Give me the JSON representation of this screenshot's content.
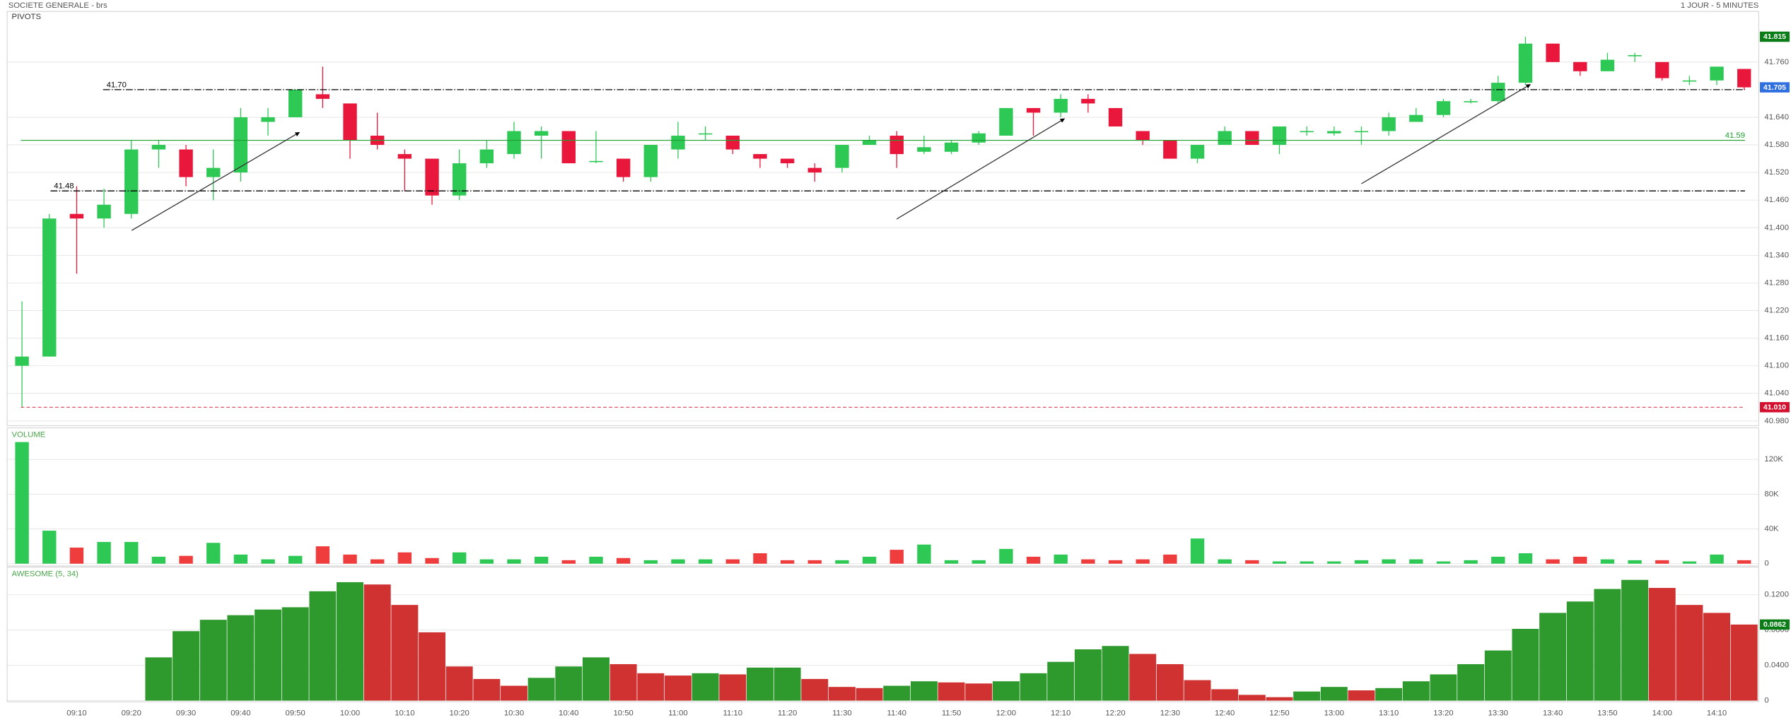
{
  "header": {
    "title": "SOCIETE GENERALE - brs",
    "period": "1 JOUR - 5 MINUTES"
  },
  "chart_data": [
    {
      "type": "candlestick",
      "title": "PIVOTS",
      "categories": [
        null,
        null,
        "09:10",
        null,
        "09:20",
        null,
        "09:30",
        null,
        "09:40",
        null,
        "09:50",
        null,
        "10:00",
        null,
        "10:10",
        null,
        "10:20",
        null,
        "10:30",
        null,
        "10:40",
        null,
        "10:50",
        null,
        "11:00",
        null,
        "11:10",
        null,
        "11:20",
        null,
        "11:30",
        null,
        "11:40",
        null,
        "11:50",
        null,
        "12:00",
        null,
        "12:10",
        null,
        "12:20",
        null,
        "12:30",
        null,
        "12:40",
        null,
        "12:50",
        null,
        "13:00",
        null,
        "13:10",
        null,
        "13:20",
        null,
        "13:30",
        null,
        "13:40",
        null,
        "13:50",
        null,
        "14:00",
        null,
        "14:10",
        null
      ],
      "open": [
        41.1,
        41.12,
        41.43,
        41.42,
        41.43,
        41.57,
        41.57,
        41.51,
        41.52,
        41.63,
        41.64,
        41.69,
        41.67,
        41.6,
        41.56,
        41.55,
        41.47,
        41.54,
        41.56,
        41.6,
        41.61,
        41.545,
        41.55,
        41.51,
        41.57,
        41.605,
        41.6,
        41.56,
        41.55,
        41.53,
        41.53,
        41.58,
        41.6,
        41.565,
        41.565,
        41.585,
        41.6,
        41.66,
        41.65,
        41.68,
        41.66,
        41.61,
        41.59,
        41.55,
        41.58,
        41.61,
        41.58,
        41.61,
        41.605,
        41.61,
        41.61,
        41.63,
        41.645,
        41.675,
        41.675,
        41.715,
        41.8,
        41.76,
        41.74,
        41.775,
        41.76,
        41.72,
        41.72,
        41.745
      ],
      "high": [
        41.24,
        41.43,
        41.49,
        41.485,
        41.59,
        41.59,
        41.58,
        41.57,
        41.66,
        41.66,
        41.7,
        41.75,
        41.67,
        41.65,
        41.57,
        41.55,
        41.57,
        41.59,
        41.63,
        41.62,
        41.61,
        41.61,
        41.55,
        41.58,
        41.63,
        41.62,
        41.6,
        41.56,
        41.55,
        41.54,
        41.58,
        41.6,
        41.61,
        41.6,
        41.59,
        41.61,
        41.66,
        41.66,
        41.69,
        41.69,
        41.66,
        41.61,
        41.59,
        41.58,
        41.62,
        41.61,
        41.62,
        41.62,
        41.62,
        41.62,
        41.65,
        41.66,
        41.68,
        41.68,
        41.73,
        41.815,
        41.8,
        41.76,
        41.78,
        41.78,
        41.76,
        41.73,
        41.75,
        41.745
      ],
      "low": [
        41.01,
        41.12,
        41.3,
        41.4,
        41.42,
        41.53,
        41.49,
        41.46,
        41.5,
        41.6,
        41.64,
        41.66,
        41.55,
        41.57,
        41.48,
        41.45,
        41.46,
        41.53,
        41.55,
        41.55,
        41.54,
        41.54,
        41.5,
        41.5,
        41.55,
        41.59,
        41.56,
        41.53,
        41.53,
        41.5,
        41.52,
        41.58,
        41.53,
        41.56,
        41.56,
        41.58,
        41.6,
        41.6,
        41.64,
        41.65,
        41.62,
        41.58,
        41.55,
        41.54,
        41.58,
        41.58,
        41.56,
        41.6,
        41.6,
        41.58,
        41.6,
        41.63,
        41.64,
        41.67,
        41.67,
        41.71,
        41.76,
        41.73,
        41.74,
        41.76,
        41.72,
        41.71,
        41.71,
        41.7
      ],
      "close": [
        41.12,
        41.42,
        41.42,
        41.45,
        41.57,
        41.58,
        41.51,
        41.53,
        41.64,
        41.64,
        41.7,
        41.68,
        41.59,
        41.58,
        41.55,
        41.47,
        41.54,
        41.57,
        41.61,
        41.61,
        41.54,
        41.545,
        41.51,
        41.58,
        41.6,
        41.605,
        41.57,
        41.55,
        41.54,
        41.52,
        41.58,
        41.59,
        41.56,
        41.575,
        41.585,
        41.605,
        41.66,
        41.65,
        41.68,
        41.67,
        41.62,
        41.59,
        41.55,
        41.58,
        41.61,
        41.58,
        41.62,
        41.61,
        41.61,
        41.61,
        41.64,
        41.645,
        41.675,
        41.675,
        41.715,
        41.8,
        41.76,
        41.74,
        41.765,
        41.775,
        41.725,
        41.72,
        41.75,
        41.705
      ],
      "up_color": "#2ec955",
      "down_color": "#e8173b",
      "ylim": [
        40.97,
        41.87
      ],
      "yticks": [
        {
          "value": 40.98,
          "label": "40.980"
        },
        {
          "value": 41.04,
          "label": "41.040"
        },
        {
          "value": 41.1,
          "label": "41.100"
        },
        {
          "value": 41.16,
          "label": "41.160"
        },
        {
          "value": 41.22,
          "label": "41.220"
        },
        {
          "value": 41.28,
          "label": "41.280"
        },
        {
          "value": 41.34,
          "label": "41.340"
        },
        {
          "value": 41.4,
          "label": "41.400"
        },
        {
          "value": 41.46,
          "label": "41.460"
        },
        {
          "value": 41.52,
          "label": "41.520"
        },
        {
          "value": 41.58,
          "label": "41.580"
        },
        {
          "value": 41.64,
          "label": "41.640"
        },
        {
          "value": 41.76,
          "label": "41.760"
        }
      ],
      "grid": true,
      "pivots": [
        {
          "value": 41.7,
          "label": "41.70",
          "color": "#000000"
        },
        {
          "value": 41.48,
          "label": "41.48",
          "color": "#000000"
        },
        {
          "value": 41.59,
          "label": "41.59",
          "color": "#1e9e2e"
        }
      ],
      "markers": [
        {
          "value": 41.815,
          "label": "41.815",
          "color": "#0a7d16"
        },
        {
          "value": 41.705,
          "label": "41.705",
          "color": "#2f6fe0"
        },
        {
          "value": 41.01,
          "label": "41.010",
          "color": "#d4102e",
          "line": "dashed"
        }
      ]
    },
    {
      "type": "bar",
      "title": "VOLUME",
      "values": [
        140000,
        38000,
        18500,
        25000,
        25000,
        8000,
        9000,
        24000,
        10500,
        5000,
        9000,
        20000,
        10500,
        5000,
        13000,
        6500,
        13000,
        5000,
        5000,
        8000,
        4000,
        8000,
        6500,
        4000,
        5000,
        5000,
        5000,
        12000,
        4000,
        4000,
        4000,
        8000,
        16000,
        22000,
        4000,
        4000,
        17000,
        8000,
        10500,
        5000,
        4000,
        5000,
        10500,
        29000,
        5000,
        4000,
        2600,
        2600,
        2600,
        4000,
        5000,
        5000,
        2600,
        4000,
        8000,
        12000,
        5000,
        8000,
        5000,
        4000,
        4000,
        2600,
        10500,
        4000
      ],
      "color_by": "candle",
      "up_color": "#2ec955",
      "down_color": "#ef3d3d",
      "ylim": [
        0,
        155000
      ],
      "yticks": [
        0,
        {
          "value": 40000,
          "label": "40K"
        },
        {
          "value": 80000,
          "label": "80K"
        },
        {
          "value": 120000,
          "label": "120K"
        }
      ],
      "grid": true
    },
    {
      "type": "bar",
      "title": "AWESOME (5, 34)",
      "values": [
        null,
        null,
        null,
        null,
        null,
        0.049,
        0.0787,
        0.0916,
        0.0968,
        0.1032,
        0.1058,
        0.1239,
        0.1342,
        0.1316,
        0.1084,
        0.0774,
        0.0387,
        0.0245,
        0.0168,
        0.0258,
        0.0387,
        0.049,
        0.0413,
        0.031,
        0.0284,
        0.031,
        0.0297,
        0.0374,
        0.0374,
        0.0245,
        0.0155,
        0.0142,
        0.0168,
        0.0219,
        0.0206,
        0.0194,
        0.0219,
        0.031,
        0.0439,
        0.0581,
        0.0619,
        0.0529,
        0.0413,
        0.0232,
        0.0129,
        0.0065,
        0.0039,
        0.0103,
        0.0155,
        0.0116,
        0.0142,
        0.0219,
        0.0297,
        0.0413,
        0.0568,
        0.0813,
        0.0994,
        0.1123,
        0.1265,
        0.1368,
        0.1277,
        0.1084,
        0.0994,
        0.0862
      ],
      "color_by": "change",
      "up_color": "#2e9a2e",
      "down_color": "#d03232",
      "ylim": [
        0,
        0.15
      ],
      "yticks": [
        0,
        {
          "value": 0.04,
          "label": "0.0400"
        },
        {
          "value": 0.08,
          "label": "0.0800"
        },
        {
          "value": 0.12,
          "label": "0.1200"
        }
      ],
      "grid": true,
      "markers": [
        {
          "value": 0.0862,
          "label": "0.0862",
          "color": "#0a7d16"
        }
      ]
    }
  ]
}
